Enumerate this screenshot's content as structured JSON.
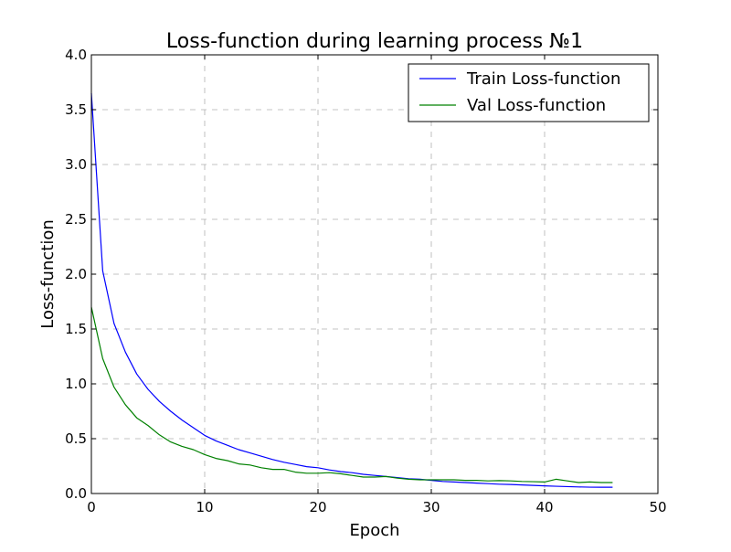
{
  "chart_data": {
    "type": "line",
    "title": "Loss-function during learning process №1",
    "xlabel": "Epoch",
    "ylabel": "Loss-function",
    "xlim": [
      0,
      50
    ],
    "ylim": [
      0.0,
      4.0
    ],
    "x_ticks": [
      "0",
      "10",
      "20",
      "30",
      "40",
      "50"
    ],
    "y_ticks": [
      "0.0",
      "0.5",
      "1.0",
      "1.5",
      "2.0",
      "2.5",
      "3.0",
      "3.5",
      "4.0"
    ],
    "grid": true,
    "legend_position": "upper right",
    "x": [
      0,
      1,
      2,
      3,
      4,
      5,
      6,
      7,
      8,
      9,
      10,
      11,
      12,
      13,
      14,
      15,
      16,
      17,
      18,
      19,
      20,
      21,
      22,
      23,
      24,
      25,
      26,
      27,
      28,
      29,
      30,
      31,
      32,
      33,
      34,
      35,
      36,
      37,
      38,
      39,
      40,
      41,
      42,
      43,
      44,
      45,
      46
    ],
    "series": [
      {
        "name": "Train Loss-function",
        "color": "#0000ff",
        "values": [
          3.65,
          2.03,
          1.55,
          1.29,
          1.09,
          0.95,
          0.84,
          0.75,
          0.67,
          0.6,
          0.53,
          0.48,
          0.44,
          0.4,
          0.37,
          0.34,
          0.31,
          0.285,
          0.265,
          0.245,
          0.235,
          0.215,
          0.2,
          0.19,
          0.175,
          0.165,
          0.155,
          0.145,
          0.135,
          0.13,
          0.12,
          0.11,
          0.105,
          0.1,
          0.095,
          0.09,
          0.085,
          0.082,
          0.078,
          0.074,
          0.07,
          0.066,
          0.063,
          0.06,
          0.058,
          0.057,
          0.057
        ]
      },
      {
        "name": "Val Loss-function",
        "color": "#008000",
        "values": [
          1.7,
          1.23,
          0.97,
          0.81,
          0.69,
          0.62,
          0.535,
          0.47,
          0.43,
          0.4,
          0.355,
          0.32,
          0.3,
          0.27,
          0.26,
          0.235,
          0.22,
          0.22,
          0.195,
          0.185,
          0.185,
          0.19,
          0.18,
          0.165,
          0.15,
          0.15,
          0.155,
          0.14,
          0.13,
          0.125,
          0.125,
          0.125,
          0.125,
          0.12,
          0.12,
          0.115,
          0.118,
          0.115,
          0.11,
          0.108,
          0.105,
          0.13,
          0.115,
          0.1,
          0.105,
          0.1,
          0.1
        ]
      }
    ]
  }
}
